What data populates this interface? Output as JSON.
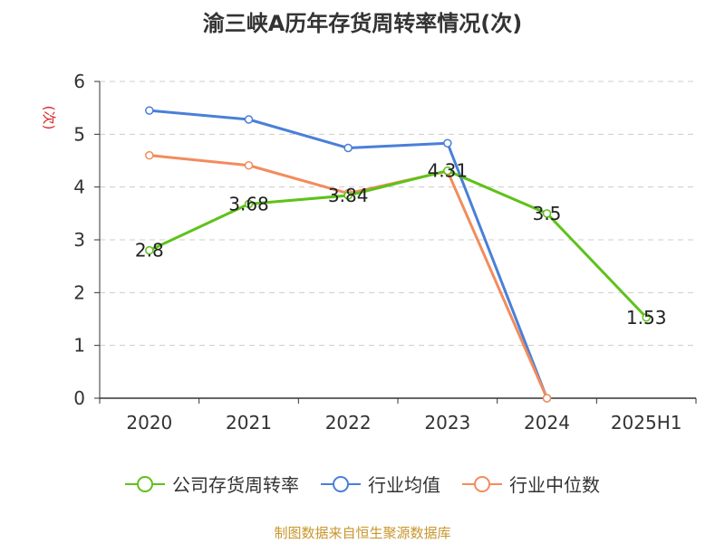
{
  "chart_data": {
    "type": "line",
    "title": "渝三峡A历年存货周转率情况(次)",
    "ylabel": "(次)",
    "ylim": [
      0,
      6
    ],
    "yticks": [
      0,
      1,
      2,
      3,
      4,
      5,
      6
    ],
    "categories": [
      "2020",
      "2021",
      "2022",
      "2023",
      "2024",
      "2025H1"
    ],
    "grid": true,
    "legend_position": "bottom",
    "series": [
      {
        "name": "公司存货周转率",
        "color": "#5ec21a",
        "values": [
          2.8,
          3.68,
          3.84,
          4.31,
          3.5,
          1.53
        ],
        "labels": [
          "2.8",
          "3.68",
          "3.84",
          "4.31",
          "3.5",
          "1.53"
        ]
      },
      {
        "name": "行业均值",
        "color": "#4a7fd9",
        "values": [
          5.45,
          5.28,
          4.74,
          4.83,
          0,
          null
        ]
      },
      {
        "name": "行业中位数",
        "color": "#f28c5c",
        "values": [
          4.6,
          4.41,
          3.88,
          4.3,
          0,
          null
        ]
      }
    ]
  },
  "footer": {
    "source": "制图数据来自恒生聚源数据库",
    "color": "#c8962d"
  },
  "ylabel_color": "#d62728"
}
